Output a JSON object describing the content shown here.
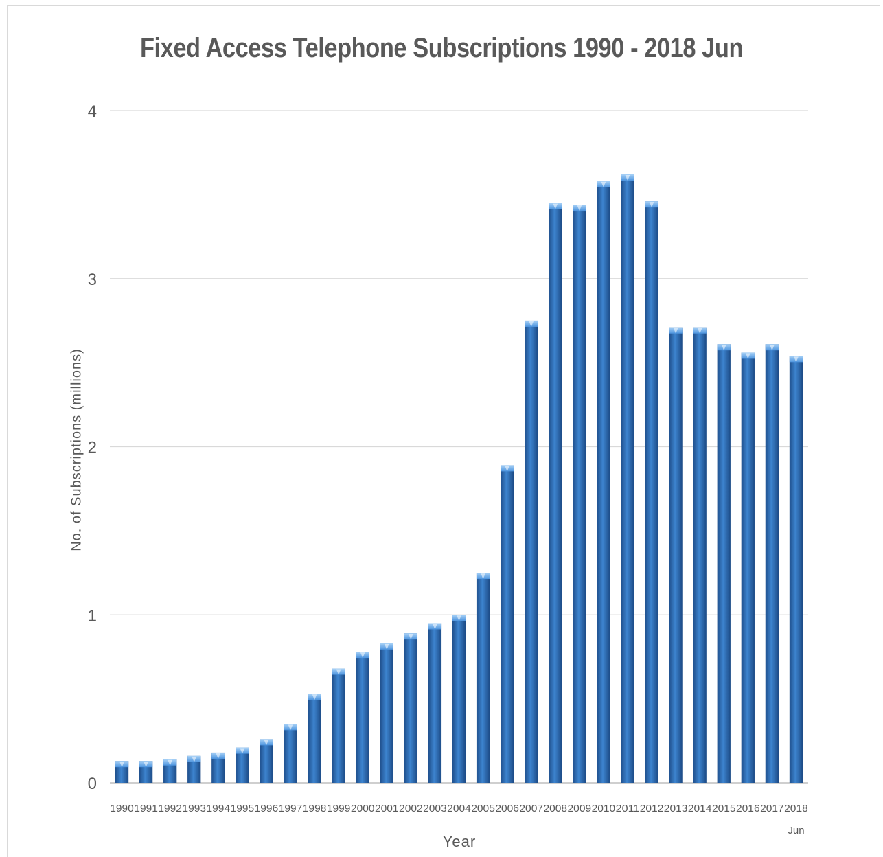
{
  "chart_data": {
    "type": "bar",
    "title": "Fixed Access Telephone Subscriptions  1990 - 2018 Jun",
    "xlabel": "Year",
    "ylabel": "No. of Subscriptions (millions)",
    "ylim": [
      0,
      4
    ],
    "yticks": [
      "0",
      "1",
      "2",
      "3",
      "4"
    ],
    "grid": true,
    "legend": "none",
    "bar_color": "#2e6db3",
    "categories": [
      "1990",
      "1991",
      "1992",
      "1993",
      "1994",
      "1995",
      "1996",
      "1997",
      "1998",
      "1999",
      "2000",
      "2001",
      "2002",
      "2003",
      "2004",
      "2005",
      "2006",
      "2007",
      "2008",
      "2009",
      "2010",
      "2011",
      "2012",
      "2013",
      "2014",
      "2015",
      "2016",
      "2017",
      "2018 Jun"
    ],
    "values": [
      0.13,
      0.13,
      0.14,
      0.16,
      0.18,
      0.21,
      0.26,
      0.35,
      0.53,
      0.68,
      0.78,
      0.83,
      0.89,
      0.95,
      1.0,
      1.25,
      1.89,
      2.75,
      3.45,
      3.44,
      3.58,
      3.62,
      3.46,
      2.71,
      2.71,
      2.61,
      2.56,
      2.61,
      2.54
    ]
  }
}
